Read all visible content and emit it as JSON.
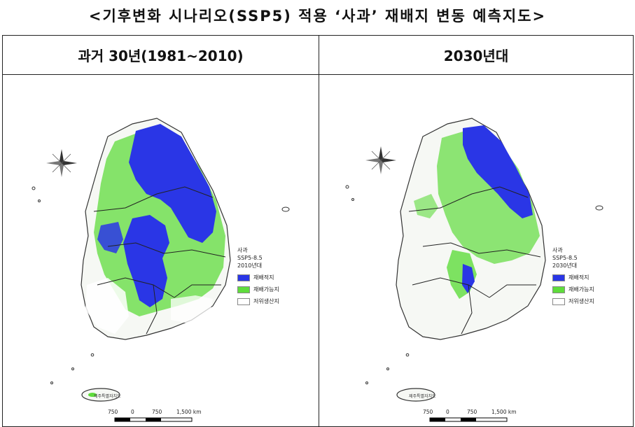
{
  "title": "<기후변화 시나리오(SSP5) 적용  ‘사과’  재배지 변동 예측지도>",
  "colors": {
    "suitable": "#2a36e6",
    "possible": "#5fdc3c",
    "low": "#ffffff",
    "border": "#222222"
  },
  "panels": [
    {
      "header": "과거 30년(1981~2010)",
      "legend": {
        "title_1": "사과",
        "title_2": "SSP5-8.5",
        "title_3": "2010년대",
        "items": [
          {
            "label": "재배적지",
            "color": "#2a36e6"
          },
          {
            "label": "재배가능지",
            "color": "#5fdc3c"
          },
          {
            "label": "저위생산지",
            "color": "#ffffff"
          }
        ]
      },
      "scale": {
        "labels": [
          "750",
          "0",
          "750",
          "1,500 km"
        ]
      },
      "jeju_label": "제주특별자치도",
      "suitable_level": 0.45
    },
    {
      "header": "2030년대",
      "legend": {
        "title_1": "사과",
        "title_2": "SSP5-8.5",
        "title_3": "2030년대",
        "items": [
          {
            "label": "재배적지",
            "color": "#2a36e6"
          },
          {
            "label": "재배가능지",
            "color": "#5fdc3c"
          },
          {
            "label": "저위생산지",
            "color": "#ffffff"
          }
        ]
      },
      "scale": {
        "labels": [
          "750",
          "0",
          "750",
          "1,500 km"
        ]
      },
      "jeju_label": "제주특별자치도",
      "suitable_level": 0.2
    }
  ]
}
